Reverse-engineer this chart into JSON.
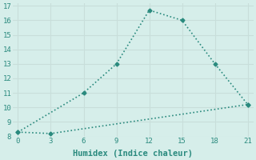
{
  "xlabel": "Humidex (Indice chaleur)",
  "line1_x": [
    0,
    6,
    9,
    12,
    15,
    18,
    21
  ],
  "line1_y": [
    8.3,
    11.0,
    13.0,
    16.7,
    16.0,
    13.0,
    10.2
  ],
  "line2_x": [
    0,
    3,
    21
  ],
  "line2_y": [
    8.3,
    8.2,
    10.2
  ],
  "line_color": "#2a8a7e",
  "bg_color": "#d6eeea",
  "grid_major_color": "#c8deda",
  "grid_minor_color": "#e0f0ee",
  "xlim": [
    -0.5,
    21.5
  ],
  "ylim": [
    8,
    17.2
  ],
  "xticks": [
    0,
    3,
    6,
    9,
    12,
    15,
    18,
    21
  ],
  "yticks": [
    8,
    9,
    10,
    11,
    12,
    13,
    14,
    15,
    16,
    17
  ],
  "tick_fontsize": 6.5,
  "xlabel_fontsize": 7.5
}
